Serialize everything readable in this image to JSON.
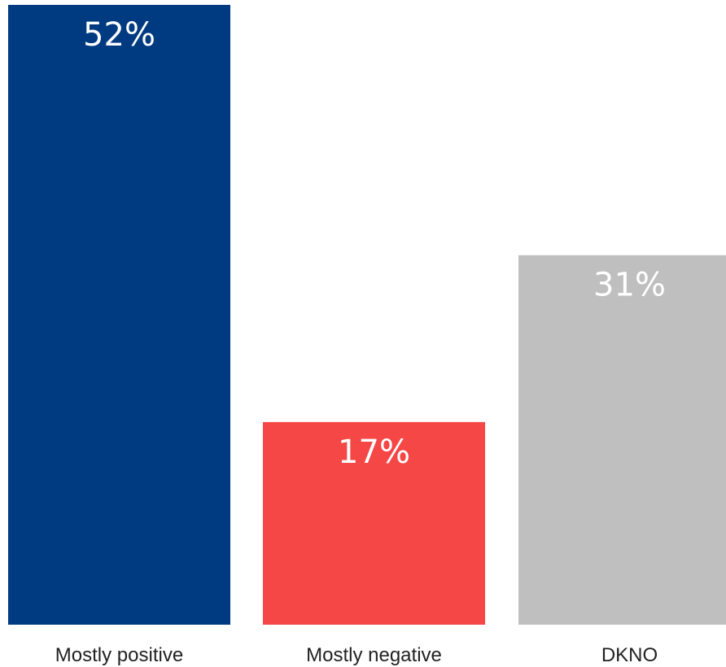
{
  "chart_data": {
    "type": "bar",
    "categories": [
      "Mostly positive",
      "Mostly negative",
      "DKNO"
    ],
    "values": [
      52,
      17,
      31
    ],
    "data_labels": [
      "52%",
      "17%",
      "31%"
    ],
    "colors": [
      "#003A80",
      "#F44746",
      "#BFBFBF"
    ],
    "title": "",
    "xlabel": "",
    "ylabel": "",
    "ylim": [
      0,
      52
    ],
    "grid": false
  }
}
